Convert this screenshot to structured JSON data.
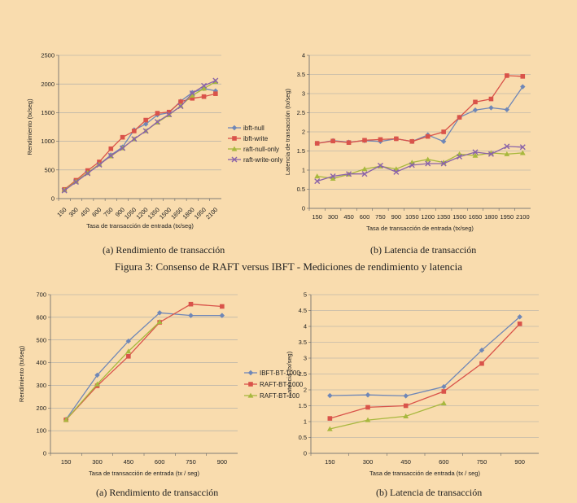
{
  "figure_caption": "Figura 3: Consenso de RAFT versus IBFT - Mediciones de rendimiento y latencia",
  "chart_data": [
    {
      "id": "top-left",
      "type": "line",
      "caption": "(a)  Rendimiento de transacción",
      "xlabel": "Tasa de transacción de entrada (tx/seg)",
      "ylabel": "Rendimiento (tx/seg)",
      "ylim": [
        0,
        2500
      ],
      "yticks": [
        0,
        500,
        1000,
        1500,
        2000,
        2500
      ],
      "categories": [
        "150",
        "300",
        "450",
        "600",
        "750",
        "900",
        "1050",
        "1200",
        "1350",
        "1500",
        "1650",
        "1800",
        "1950",
        "2100"
      ],
      "legend_position": "right",
      "grid": true,
      "series": [
        {
          "name": "ibft-null",
          "color": "#6f87b7",
          "marker": "diamond",
          "values": [
            150,
            300,
            450,
            600,
            760,
            900,
            1200,
            1300,
            1460,
            1500,
            1700,
            1850,
            1920,
            1880
          ]
        },
        {
          "name": "ibft-write",
          "color": "#d9534a",
          "marker": "square",
          "values": [
            160,
            320,
            490,
            640,
            870,
            1070,
            1180,
            1370,
            1490,
            1510,
            1690,
            1750,
            1780,
            1830
          ]
        },
        {
          "name": "raft-null-only",
          "color": "#a8b83e",
          "marker": "triangle",
          "values": [
            150,
            300,
            450,
            600,
            740,
            880,
            1040,
            1180,
            1330,
            1460,
            1620,
            1800,
            1920,
            2040
          ]
        },
        {
          "name": "raft-write-only",
          "color": "#8a63a8",
          "marker": "x",
          "values": [
            140,
            290,
            440,
            590,
            750,
            880,
            1040,
            1180,
            1340,
            1470,
            1610,
            1840,
            1970,
            2060
          ]
        }
      ]
    },
    {
      "id": "top-right",
      "type": "line",
      "caption": "(b)  Latencia de transacción",
      "xlabel": "Tasa de transacción de entrada (tx/seg)",
      "ylabel": "Latencia de transacción (tx/seg)",
      "ylim": [
        0,
        4
      ],
      "yticks": [
        0,
        0.5,
        1,
        1.5,
        2,
        2.5,
        3,
        3.5,
        4
      ],
      "categories": [
        "150",
        "300",
        "450",
        "600",
        "750",
        "900",
        "1050",
        "1200",
        "1350",
        "1500",
        "1650",
        "1800",
        "1950",
        "2100"
      ],
      "grid": true,
      "series": [
        {
          "name": "ibft-null",
          "color": "#6f87b7",
          "marker": "diamond",
          "values": [
            1.7,
            1.77,
            1.73,
            1.77,
            1.75,
            1.82,
            1.75,
            1.92,
            1.75,
            2.38,
            2.57,
            2.63,
            2.58,
            3.18
          ]
        },
        {
          "name": "ibft-write",
          "color": "#d9534a",
          "marker": "square",
          "values": [
            1.7,
            1.76,
            1.72,
            1.78,
            1.8,
            1.82,
            1.75,
            1.88,
            2.0,
            2.38,
            2.78,
            2.86,
            3.47,
            3.45
          ]
        },
        {
          "name": "raft-null-only",
          "color": "#a8b83e",
          "marker": "triangle",
          "values": [
            0.84,
            0.78,
            0.89,
            1.03,
            1.1,
            1.03,
            1.2,
            1.28,
            1.2,
            1.42,
            1.38,
            1.45,
            1.42,
            1.45
          ]
        },
        {
          "name": "raft-write-only",
          "color": "#8a63a8",
          "marker": "x",
          "values": [
            0.71,
            0.84,
            0.9,
            0.9,
            1.12,
            0.95,
            1.13,
            1.17,
            1.17,
            1.35,
            1.47,
            1.42,
            1.62,
            1.6
          ]
        }
      ]
    },
    {
      "id": "bottom-left",
      "type": "line",
      "caption": "(a)  Rendimiento de transacción",
      "xlabel": "Tasa de transacción de entrada (tx / seg)",
      "ylabel": "Rendimiento (tx/seg)",
      "ylim": [
        0,
        700
      ],
      "yticks": [
        0,
        100,
        200,
        300,
        400,
        500,
        600,
        700
      ],
      "categories": [
        "150",
        "300",
        "450",
        "600",
        "750",
        "900"
      ],
      "legend_position": "right",
      "grid": true,
      "series": [
        {
          "name": "IBFT-BT-1000",
          "color": "#6f87b7",
          "marker": "diamond",
          "values": [
            150,
            345,
            495,
            620,
            608,
            608
          ]
        },
        {
          "name": "RAFT-BT-1000",
          "color": "#d9534a",
          "marker": "square",
          "values": [
            148,
            298,
            428,
            578,
            658,
            648
          ]
        },
        {
          "name": "RAFT-BT-100",
          "color": "#a8b83e",
          "marker": "triangle",
          "values": [
            148,
            305,
            450,
            580,
            null,
            null
          ]
        }
      ]
    },
    {
      "id": "bottom-right",
      "type": "line",
      "caption": "(b)  Latencia de transacción",
      "xlabel": "Tasa de transacción de entrada (tx / seg)",
      "ylabel": "Latencia (tx/seg)",
      "ylim": [
        0,
        5
      ],
      "yticks": [
        0,
        0.5,
        1,
        1.5,
        2,
        2.5,
        3,
        3.5,
        4,
        4.5,
        5
      ],
      "categories": [
        "150",
        "300",
        "450",
        "600",
        "750",
        "900"
      ],
      "grid": true,
      "series": [
        {
          "name": "IBFT-BT-1000",
          "color": "#6f87b7",
          "marker": "diamond",
          "values": [
            1.82,
            1.84,
            1.81,
            2.1,
            3.25,
            4.3
          ]
        },
        {
          "name": "RAFT-BT-1000",
          "color": "#d9534a",
          "marker": "square",
          "values": [
            1.1,
            1.45,
            1.5,
            1.95,
            2.83,
            4.08
          ]
        },
        {
          "name": "RAFT-BT-100",
          "color": "#a8b83e",
          "marker": "triangle",
          "values": [
            0.77,
            1.05,
            1.17,
            1.58,
            null,
            null
          ]
        }
      ]
    }
  ]
}
